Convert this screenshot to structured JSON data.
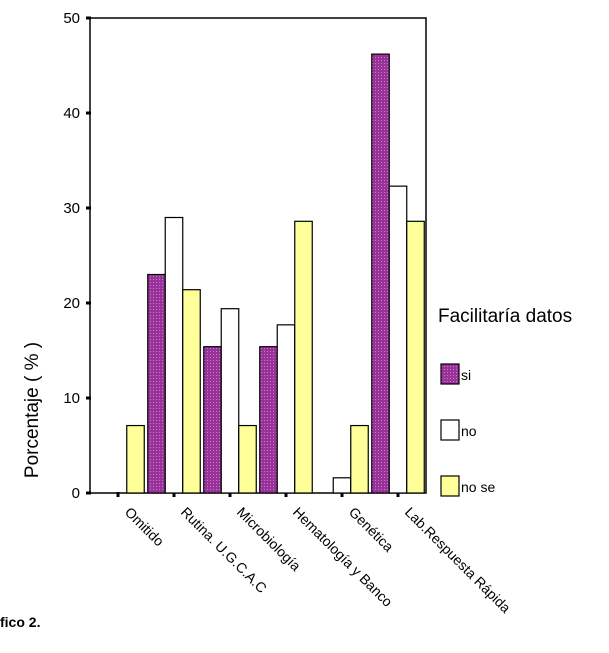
{
  "caption": "fico 2.",
  "chart_data": {
    "type": "bar",
    "categories": [
      "Omitido",
      "Rutina. U.G.C.A.C",
      "Microbiología",
      "Hematología y Banco",
      "Genética",
      "Lab.Respuesta Rápida"
    ],
    "series": [
      {
        "name": "si",
        "color": "#993399",
        "pattern": "dots",
        "values": [
          0,
          23.0,
          15.4,
          15.4,
          0,
          46.2
        ]
      },
      {
        "name": "no",
        "color": "#ffffff",
        "values": [
          0,
          29.0,
          19.4,
          17.7,
          1.6,
          32.3
        ]
      },
      {
        "name": "no se",
        "color": "#ffff99",
        "values": [
          7.1,
          21.4,
          7.1,
          28.6,
          7.1,
          28.6
        ]
      }
    ],
    "ylabel": "Porcentaje ( % )",
    "xlabel": "",
    "ylim": [
      0,
      50
    ],
    "yticks": [
      0,
      10,
      20,
      30,
      40,
      50
    ],
    "legend_title": "Facilitaría datos",
    "legend_position": "right",
    "grid": false
  }
}
